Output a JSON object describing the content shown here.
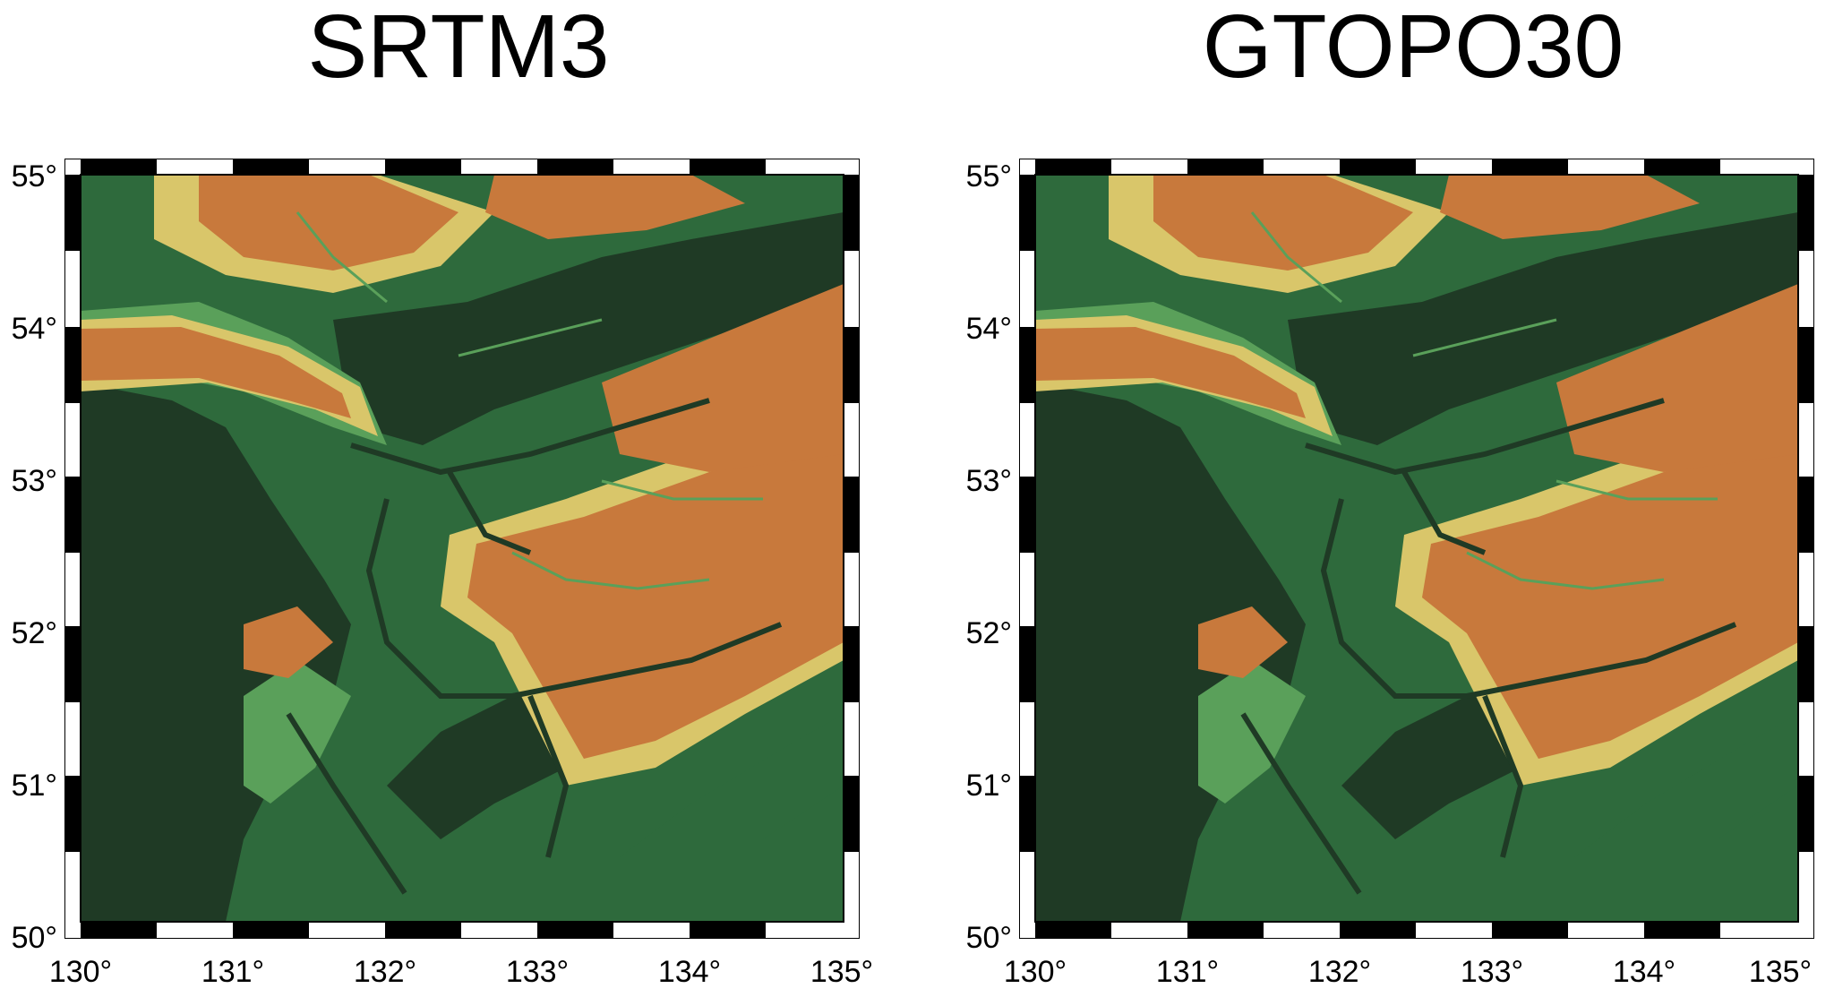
{
  "panels": [
    {
      "id": "srtm3",
      "title": "SRTM3"
    },
    {
      "id": "gtopo30",
      "title": "GTOPO30"
    }
  ],
  "axes": {
    "lat_labels": [
      "55°",
      "54°",
      "53°",
      "52°",
      "51°",
      "50°"
    ],
    "lon_labels": [
      "130°",
      "131°",
      "132°",
      "133°",
      "134°",
      "135°"
    ]
  },
  "palette": {
    "lowland": "#1f3a25",
    "low": "#2e6a3c",
    "mid_green": "#5aa05a",
    "light": "#d9c66a",
    "high": "#c8793c",
    "frame": "#000000",
    "frame_light": "#ffffff"
  }
}
